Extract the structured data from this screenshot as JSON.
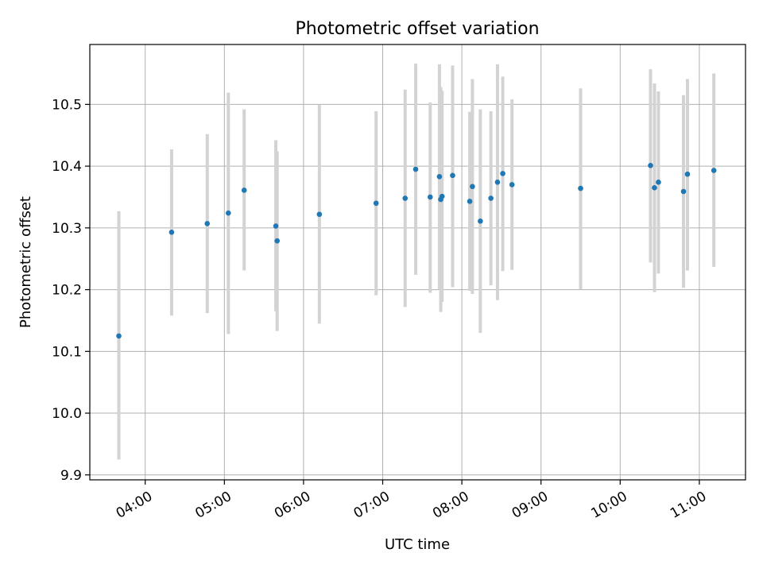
{
  "chart_data": {
    "type": "scatter",
    "title": "Photometric offset variation",
    "xlabel": "UTC time",
    "ylabel": "Photometric offset",
    "x_ticks": [
      "04:00",
      "05:00",
      "06:00",
      "07:00",
      "08:00",
      "09:00",
      "10:00",
      "11:00"
    ],
    "y_ticks": [
      "9.9",
      "10.0",
      "10.1",
      "10.2",
      "10.3",
      "10.4",
      "10.5"
    ],
    "xlim": [
      "03:18",
      "11:35"
    ],
    "ylim": [
      9.892,
      10.597
    ],
    "grid": true,
    "colors": {
      "point": "#1f77b4",
      "errorbar": "#d3d3d3"
    },
    "points": [
      {
        "x": "03:40",
        "y": 10.125,
        "lo": 9.925,
        "hi": 10.327
      },
      {
        "x": "04:20",
        "y": 10.293,
        "lo": 10.158,
        "hi": 10.427
      },
      {
        "x": "04:47",
        "y": 10.307,
        "lo": 10.162,
        "hi": 10.452
      },
      {
        "x": "05:03",
        "y": 10.324,
        "lo": 10.128,
        "hi": 10.519
      },
      {
        "x": "05:15",
        "y": 10.361,
        "lo": 10.231,
        "hi": 10.492
      },
      {
        "x": "05:39",
        "y": 10.303,
        "lo": 10.165,
        "hi": 10.442
      },
      {
        "x": "05:40",
        "y": 10.279,
        "lo": 10.133,
        "hi": 10.424
      },
      {
        "x": "06:12",
        "y": 10.322,
        "lo": 10.145,
        "hi": 10.499
      },
      {
        "x": "06:55",
        "y": 10.34,
        "lo": 10.191,
        "hi": 10.489
      },
      {
        "x": "07:17",
        "y": 10.348,
        "lo": 10.172,
        "hi": 10.524
      },
      {
        "x": "07:25",
        "y": 10.395,
        "lo": 10.224,
        "hi": 10.566
      },
      {
        "x": "07:36",
        "y": 10.35,
        "lo": 10.195,
        "hi": 10.503
      },
      {
        "x": "07:43",
        "y": 10.383,
        "lo": 10.201,
        "hi": 10.565
      },
      {
        "x": "07:44",
        "y": 10.346,
        "lo": 10.164,
        "hi": 10.528
      },
      {
        "x": "07:45",
        "y": 10.351,
        "lo": 10.18,
        "hi": 10.522
      },
      {
        "x": "07:53",
        "y": 10.385,
        "lo": 10.204,
        "hi": 10.563
      },
      {
        "x": "08:06",
        "y": 10.343,
        "lo": 10.198,
        "hi": 10.488
      },
      {
        "x": "08:08",
        "y": 10.367,
        "lo": 10.193,
        "hi": 10.541
      },
      {
        "x": "08:14",
        "y": 10.311,
        "lo": 10.13,
        "hi": 10.492
      },
      {
        "x": "08:22",
        "y": 10.348,
        "lo": 10.207,
        "hi": 10.489
      },
      {
        "x": "08:27",
        "y": 10.374,
        "lo": 10.183,
        "hi": 10.565
      },
      {
        "x": "08:31",
        "y": 10.388,
        "lo": 10.23,
        "hi": 10.545
      },
      {
        "x": "08:38",
        "y": 10.37,
        "lo": 10.232,
        "hi": 10.508
      },
      {
        "x": "09:30",
        "y": 10.364,
        "lo": 10.201,
        "hi": 10.526
      },
      {
        "x": "10:23",
        "y": 10.401,
        "lo": 10.244,
        "hi": 10.557
      },
      {
        "x": "10:26",
        "y": 10.365,
        "lo": 10.196,
        "hi": 10.534
      },
      {
        "x": "10:29",
        "y": 10.374,
        "lo": 10.226,
        "hi": 10.521
      },
      {
        "x": "10:48",
        "y": 10.359,
        "lo": 10.203,
        "hi": 10.515
      },
      {
        "x": "10:51",
        "y": 10.387,
        "lo": 10.231,
        "hi": 10.541
      },
      {
        "x": "11:11",
        "y": 10.393,
        "lo": 10.237,
        "hi": 10.55
      }
    ]
  }
}
